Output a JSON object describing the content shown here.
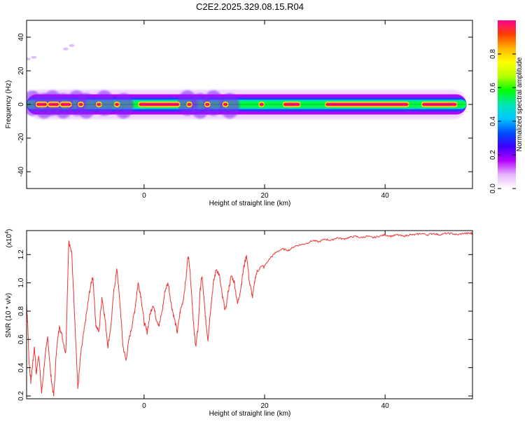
{
  "title": "C2E2.2025.329.08.15.R04",
  "chart_data": [
    {
      "id": "spectrogram",
      "type": "heatmap",
      "title": "C2E2.2025.329.08.15.R04",
      "xlabel": "Height of straight line (km)",
      "ylabel": "Frequency (Hz)",
      "xlim": [
        -19.5,
        54.5
      ],
      "ylim": [
        -50,
        50
      ],
      "x_ticks": [
        0,
        20,
        40
      ],
      "x_tick_labels": [
        "0",
        "20",
        "40"
      ],
      "y_ticks": [
        40,
        20,
        0,
        -20,
        -40
      ],
      "y_tick_labels": [
        "40",
        "20",
        "0",
        "-20",
        "-40"
      ],
      "colorbar": {
        "label": "Normalized spectral amplitude",
        "range": [
          0,
          1
        ],
        "ticks": [
          0.0,
          0.2,
          0.4,
          0.6,
          0.8
        ],
        "tick_labels": [
          "0.0",
          "0.2",
          "0.4",
          "0.6",
          "0.8"
        ],
        "colors": [
          "#ffffff",
          "#e6b3ff",
          "#b400ff",
          "#3c00ff",
          "#0050ff",
          "#00c8ff",
          "#00e6b4",
          "#00ff00",
          "#b4ff00",
          "#ffff00",
          "#ffb400",
          "#ff4000",
          "#ff0090"
        ]
      },
      "band_center_hz": 0,
      "band_halfwidth_hz": 4,
      "hot_segments": [
        [
          -18,
          -16
        ],
        [
          -16,
          -14
        ],
        [
          -14,
          -12
        ],
        [
          -11,
          -10
        ],
        [
          -8,
          -7
        ],
        [
          -5,
          -4
        ],
        [
          -1,
          6
        ],
        [
          7,
          8
        ],
        [
          10,
          11
        ],
        [
          13,
          14
        ],
        [
          19,
          20
        ],
        [
          23,
          26
        ],
        [
          30,
          44
        ],
        [
          46,
          52
        ]
      ],
      "outliers": [
        {
          "x": -19.3,
          "y": 27
        },
        {
          "x": -18.3,
          "y": 28
        },
        {
          "x": -13,
          "y": 33
        },
        {
          "x": -12,
          "y": 35
        }
      ]
    },
    {
      "id": "snr",
      "type": "line",
      "xlabel": "Height of straight line (km)",
      "ylabel": "SNR (10 * v/v)",
      "scale_note": "(x10",
      "scale_exponent": "4",
      "scale_close": ")",
      "xlim": [
        -19.5,
        54.5
      ],
      "ylim": [
        0.18,
        1.37
      ],
      "x_ticks": [
        0,
        20,
        40
      ],
      "x_tick_labels": [
        "0",
        "20",
        "40"
      ],
      "y_ticks": [
        0.2,
        0.4,
        0.6,
        0.8,
        1.0,
        1.2
      ],
      "y_tick_labels": [
        "0.2",
        "0.4",
        "0.6",
        "0.8",
        "1.0",
        "1.2"
      ],
      "line_color": "#ee3333",
      "series": [
        {
          "name": "SNR",
          "x": [
            -19.5,
            -19.3,
            -19.1,
            -18.8,
            -18.5,
            -18.2,
            -17.9,
            -17.5,
            -17.0,
            -16.5,
            -16.0,
            -15.5,
            -15.0,
            -14.5,
            -14.0,
            -13.5,
            -13.0,
            -12.5,
            -12.0,
            -11.5,
            -11.0,
            -10.5,
            -10.0,
            -9.5,
            -9.0,
            -8.5,
            -8.0,
            -7.5,
            -7.0,
            -6.5,
            -6.0,
            -5.5,
            -5.0,
            -4.5,
            -4.0,
            -3.5,
            -3.0,
            -2.5,
            -2.0,
            -1.5,
            -1.0,
            -0.5,
            0.0,
            0.5,
            1.0,
            1.5,
            2.0,
            2.5,
            3.0,
            3.5,
            4.0,
            4.5,
            5.0,
            5.5,
            6.0,
            6.5,
            7.0,
            7.3,
            7.6,
            8.0,
            8.3,
            8.6,
            9.0,
            9.3,
            9.6,
            10.0,
            10.3,
            10.6,
            11.0,
            11.5,
            12.0,
            12.5,
            13.0,
            13.5,
            14.0,
            14.5,
            15.0,
            15.5,
            16.0,
            16.5,
            17.0,
            17.5,
            18.0,
            18.5,
            19.0,
            20.0,
            21.0,
            22.0,
            23.0,
            24.0,
            25.0,
            26.0,
            27.0,
            28.0,
            29.0,
            30.0,
            31.0,
            32.0,
            33.0,
            34.0,
            35.0,
            36.0,
            37.0,
            38.0,
            39.0,
            40.0,
            41.0,
            42.0,
            43.0,
            44.0,
            45.0,
            46.0,
            47.0,
            48.0,
            49.0,
            50.0,
            51.0,
            52.0,
            53.0,
            54.0,
            54.5
          ],
          "y": [
            0.85,
            0.7,
            0.45,
            0.3,
            0.42,
            0.55,
            0.35,
            0.5,
            0.22,
            0.45,
            0.62,
            0.35,
            0.2,
            0.55,
            0.7,
            0.6,
            0.5,
            1.3,
            1.2,
            0.75,
            0.25,
            0.5,
            0.65,
            0.8,
            0.95,
            1.05,
            0.7,
            0.65,
            0.9,
            0.75,
            0.55,
            0.7,
            0.95,
            1.1,
            0.85,
            0.55,
            0.45,
            0.6,
            0.7,
            0.82,
            1.0,
            0.9,
            0.72,
            0.65,
            0.78,
            0.85,
            0.75,
            0.7,
            0.8,
            0.95,
            1.0,
            0.85,
            0.75,
            0.65,
            0.8,
            0.88,
            1.05,
            1.2,
            1.1,
            0.85,
            0.65,
            0.55,
            0.7,
            0.95,
            1.05,
            0.85,
            0.7,
            0.6,
            0.8,
            1.0,
            1.1,
            1.05,
            0.9,
            0.8,
            0.95,
            1.05,
            1.0,
            0.85,
            0.95,
            1.1,
            1.2,
            1.0,
            0.9,
            1.05,
            1.1,
            1.12,
            1.18,
            1.22,
            1.24,
            1.23,
            1.26,
            1.27,
            1.28,
            1.3,
            1.29,
            1.31,
            1.3,
            1.32,
            1.31,
            1.32,
            1.33,
            1.32,
            1.33,
            1.32,
            1.33,
            1.34,
            1.33,
            1.34,
            1.33,
            1.34,
            1.34,
            1.35,
            1.34,
            1.35,
            1.34,
            1.35,
            1.35,
            1.34,
            1.35,
            1.35,
            1.35
          ]
        }
      ]
    }
  ]
}
